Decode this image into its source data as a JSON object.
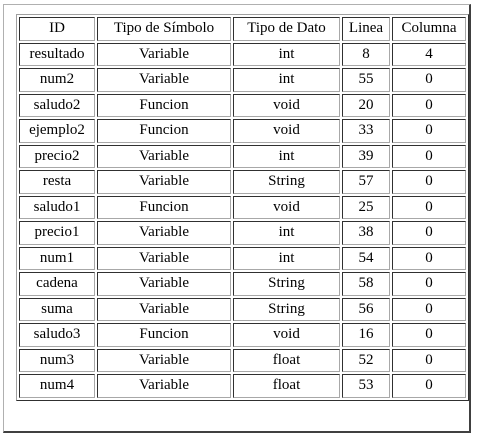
{
  "table": {
    "headers": [
      "ID",
      "Tipo de Símbolo",
      "Tipo de Dato",
      "Linea",
      "Columna"
    ],
    "rows": [
      [
        "resultado",
        "Variable",
        "int",
        "8",
        "4"
      ],
      [
        "num2",
        "Variable",
        "int",
        "55",
        "0"
      ],
      [
        "saludo2",
        "Funcion",
        "void",
        "20",
        "0"
      ],
      [
        "ejemplo2",
        "Funcion",
        "void",
        "33",
        "0"
      ],
      [
        "precio2",
        "Variable",
        "int",
        "39",
        "0"
      ],
      [
        "resta",
        "Variable",
        "String",
        "57",
        "0"
      ],
      [
        "saludo1",
        "Funcion",
        "void",
        "25",
        "0"
      ],
      [
        "precio1",
        "Variable",
        "int",
        "38",
        "0"
      ],
      [
        "num1",
        "Variable",
        "int",
        "54",
        "0"
      ],
      [
        "cadena",
        "Variable",
        "String",
        "58",
        "0"
      ],
      [
        "suma",
        "Variable",
        "String",
        "56",
        "0"
      ],
      [
        "saludo3",
        "Funcion",
        "void",
        "16",
        "0"
      ],
      [
        "num3",
        "Variable",
        "float",
        "52",
        "0"
      ],
      [
        "num4",
        "Variable",
        "float",
        "53",
        "0"
      ]
    ]
  }
}
